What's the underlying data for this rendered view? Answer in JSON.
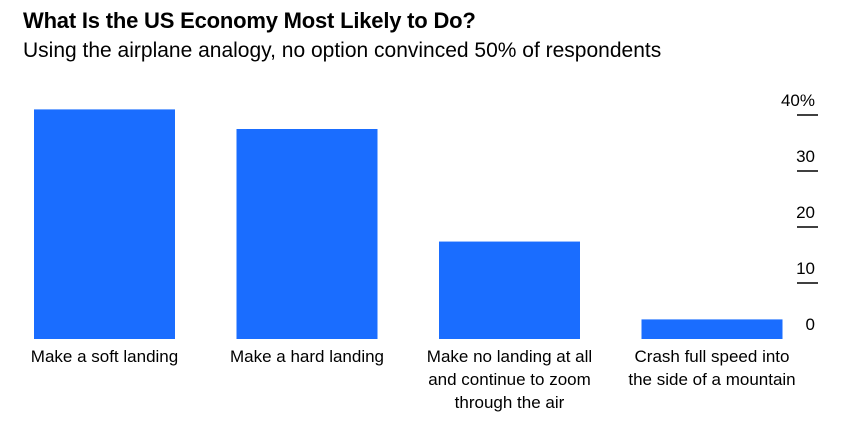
{
  "chart_data": {
    "type": "bar",
    "title": "What Is the US Economy Most Likely to Do?",
    "subtitle": "Using the airplane analogy, no option convinced 50% of respondents",
    "categories": [
      [
        "Make a soft landing"
      ],
      [
        "Make a hard landing"
      ],
      [
        "Make no landing at all",
        "and continue to zoom",
        "through the air"
      ],
      [
        "Crash full speed into",
        "the side of a mountain"
      ]
    ],
    "values": [
      41,
      37.5,
      17.4,
      3.5
    ],
    "ylim": [
      0,
      40
    ],
    "yticks": [
      0,
      10,
      20,
      30,
      40
    ],
    "ytick_labels": [
      "0",
      "10",
      "20",
      "30",
      "40%"
    ],
    "axis_side": "right",
    "xlabel": "",
    "ylabel": "",
    "bar_color": "#1a6dff",
    "text_color": "#000000"
  }
}
